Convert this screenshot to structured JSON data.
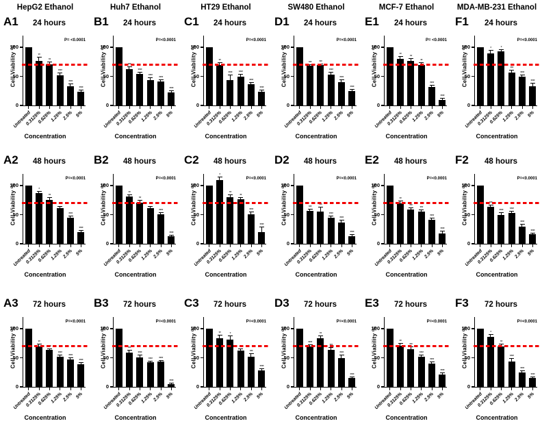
{
  "figure": {
    "column_titles": [
      "HepG2 Ethanol",
      "Huh7 Ethanol",
      "HT29 Ethanol",
      "SW480 Ethanol",
      "MCF-7 Ethanol",
      "MDA-MB-231 Ethanol"
    ],
    "yticks": [
      0,
      50,
      100
    ],
    "ylabel": "Cell Viability %",
    "xlabel": "Concentration",
    "bar_color": "#000000",
    "threshold_color": "#ff0000",
    "threshold_value": 70
  },
  "chart_data": [
    {
      "type": "bar",
      "panel": "A1",
      "group": "HepG2 Ethanol",
      "title": "24 hours",
      "xlabel": "Concentration",
      "ylabel": "Cell Viability %",
      "annotation": "P= <0.0001",
      "ref_line": 70,
      "ylim": [
        0,
        120
      ],
      "categories": [
        "Untreated",
        "0.3125%",
        "0.625%",
        "1.25%",
        "2.5%",
        "5%"
      ],
      "values": [
        100,
        77,
        71,
        52,
        33,
        24
      ],
      "errors": [
        0,
        5,
        3,
        3,
        3,
        2
      ],
      "sig": [
        "",
        "**",
        "**",
        "****",
        "****",
        "****"
      ]
    },
    {
      "type": "bar",
      "panel": "B1",
      "group": "Huh7 Ethanol",
      "title": "24 hours",
      "xlabel": "Concentration",
      "ylabel": "Cell Viability %",
      "annotation": "P=<0.0001",
      "ref_line": 70,
      "ylim": [
        0,
        120
      ],
      "categories": [
        "Untreated",
        "0.3125%",
        "0.625%",
        "1.25%",
        "2.5%",
        "5%"
      ],
      "values": [
        100,
        62,
        54,
        44,
        41,
        22
      ],
      "errors": [
        0,
        4,
        2,
        3,
        2,
        3
      ],
      "sig": [
        "",
        "***",
        "****",
        "****",
        "****",
        "****"
      ]
    },
    {
      "type": "bar",
      "panel": "C1",
      "group": "HT29 Ethanol",
      "title": "24 hours",
      "xlabel": "Concentration",
      "ylabel": "Cell Viability %",
      "annotation": "P=<0.0001",
      "ref_line": 70,
      "ylim": [
        0,
        120
      ],
      "categories": [
        "Untreated",
        "0.3125%",
        "0.625%",
        "1.25%",
        "2.5%",
        "5%"
      ],
      "values": [
        100,
        70,
        44,
        50,
        36,
        24
      ],
      "errors": [
        0,
        3,
        8,
        3,
        3,
        2
      ],
      "sig": [
        "",
        "**",
        "****",
        "****",
        "****",
        "****"
      ]
    },
    {
      "type": "bar",
      "panel": "D1",
      "group": "SW480 Ethanol",
      "title": "24 hours",
      "xlabel": "Concentration",
      "ylabel": "Cell Viability %",
      "annotation": "P=<0.0001",
      "ref_line": 70,
      "ylim": [
        0,
        120
      ],
      "categories": [
        "Untreated",
        "0.3125%",
        "0.625%",
        "1.25%",
        "2.5%",
        "5%"
      ],
      "values": [
        100,
        68,
        69,
        53,
        40,
        25
      ],
      "errors": [
        0,
        2,
        2,
        4,
        3,
        2
      ],
      "sig": [
        "",
        "***",
        "***",
        "****",
        "****",
        "****"
      ]
    },
    {
      "type": "bar",
      "panel": "E1",
      "group": "MCF-7 Ethanol",
      "title": "24 hours",
      "xlabel": "Concentration",
      "ylabel": "Cell Viability %",
      "annotation": "P= <0.0001",
      "ref_line": 70,
      "ylim": [
        0,
        120
      ],
      "categories": [
        "Untreated",
        "0.3125%",
        "0.625%",
        "1.25%",
        "2.5%",
        "5%"
      ],
      "values": [
        100,
        80,
        77,
        70,
        32,
        10
      ],
      "errors": [
        0,
        4,
        3,
        3,
        2,
        2
      ],
      "sig": [
        "",
        "**",
        "**",
        "**",
        "****",
        "****"
      ]
    },
    {
      "type": "bar",
      "panel": "F1",
      "group": "MDA-MB-231 Ethanol",
      "title": "24 hours",
      "xlabel": "Concentration",
      "ylabel": "Cell Viability %",
      "annotation": "P=<0.0001",
      "ref_line": 70,
      "ylim": [
        0,
        120
      ],
      "categories": [
        "Untreated",
        "0.3125%",
        "0.625%",
        "1.25%",
        "2.5%",
        "5%"
      ],
      "values": [
        100,
        90,
        93,
        57,
        49,
        33
      ],
      "errors": [
        0,
        4,
        2,
        3,
        3,
        5
      ],
      "sig": [
        "",
        "*",
        "*",
        "***",
        "****",
        "****"
      ]
    },
    {
      "type": "bar",
      "panel": "A2",
      "group": "HepG2 Ethanol",
      "title": "48 hours",
      "xlabel": "Concentration",
      "ylabel": "Cell Viability %",
      "annotation": "P=<0.0001",
      "ref_line": 70,
      "ylim": [
        0,
        120
      ],
      "categories": [
        "Untreated",
        "0.3125%",
        "0.625%",
        "1.25%",
        "2.5%",
        "5%"
      ],
      "values": [
        100,
        87,
        75,
        61,
        45,
        20
      ],
      "errors": [
        0,
        3,
        4,
        3,
        2,
        2
      ],
      "sig": [
        "",
        "*",
        "**",
        "***",
        "****",
        "****"
      ]
    },
    {
      "type": "bar",
      "panel": "B2",
      "group": "Huh7 Ethanol",
      "title": "48 hours",
      "xlabel": "Concentration",
      "ylabel": "Cell Viability %",
      "annotation": "P=<0.0001",
      "ref_line": 70,
      "ylim": [
        0,
        120
      ],
      "categories": [
        "Untreated",
        "0.3125%",
        "0.625%",
        "1.25%",
        "2.5%",
        "5%"
      ],
      "values": [
        100,
        81,
        71,
        61,
        51,
        13
      ],
      "errors": [
        0,
        3,
        3,
        2,
        2,
        1
      ],
      "sig": [
        "",
        "**",
        "**",
        "***",
        "****",
        "****"
      ]
    },
    {
      "type": "bar",
      "panel": "C2",
      "group": "HT29 Ethanol",
      "title": "48 hours",
      "xlabel": "Concentration",
      "ylabel": "Cell Viability %",
      "annotation": "P=<0.0001",
      "ref_line": 70,
      "ylim": [
        0,
        120
      ],
      "categories": [
        "Untreated",
        "0.3125%",
        "0.625%",
        "1.25%",
        "2.5%",
        "5%"
      ],
      "values": [
        100,
        110,
        80,
        76,
        51,
        20
      ],
      "errors": [
        0,
        4,
        4,
        3,
        3,
        8
      ],
      "sig": [
        "",
        "*",
        "**",
        "**",
        "****",
        "****"
      ]
    },
    {
      "type": "bar",
      "panel": "D2",
      "group": "SW480 Ethanol",
      "title": "48 hours",
      "xlabel": "Concentration",
      "ylabel": "Cell Viability %",
      "annotation": "P=<0.0001",
      "ref_line": 70,
      "ylim": [
        0,
        120
      ],
      "categories": [
        "Untreated",
        "0.3125%",
        "0.625%",
        "1.25%",
        "2.5%",
        "5%"
      ],
      "values": [
        100,
        56,
        55,
        45,
        36,
        13
      ],
      "errors": [
        0,
        3,
        7,
        2,
        4,
        2
      ],
      "sig": [
        "",
        "***",
        "***",
        "****",
        "****",
        "****"
      ]
    },
    {
      "type": "bar",
      "panel": "E2",
      "group": "MCF-7 Ethanol",
      "title": "48 hours",
      "xlabel": "Concentration",
      "ylabel": "Cell Viability %",
      "annotation": "P=<0.0001",
      "ref_line": 70,
      "ylim": [
        0,
        120
      ],
      "categories": [
        "Untreated",
        "0.3125%",
        "0.625%",
        "1.25%",
        "2.5%",
        "5%"
      ],
      "values": [
        100,
        70,
        59,
        55,
        41,
        18
      ],
      "errors": [
        0,
        3,
        2,
        3,
        3,
        3
      ],
      "sig": [
        "",
        "**",
        "***",
        "***",
        "****",
        "****"
      ]
    },
    {
      "type": "bar",
      "panel": "F2",
      "group": "MDA-MB-231 Ethanol",
      "title": "48 hours",
      "xlabel": "Concentration",
      "ylabel": "Cell Viability %",
      "annotation": "P=<0.0001",
      "ref_line": 70,
      "ylim": [
        0,
        120
      ],
      "categories": [
        "Untreated",
        "0.3125%",
        "0.625%",
        "1.25%",
        "2.5%",
        "5%"
      ],
      "values": [
        100,
        64,
        50,
        53,
        30,
        16
      ],
      "errors": [
        0,
        2,
        3,
        2,
        3,
        2
      ],
      "sig": [
        "",
        "***",
        "****",
        "****",
        "****",
        "****"
      ]
    },
    {
      "type": "bar",
      "panel": "A3",
      "group": "HepG2 Ethanol",
      "title": "72 hours",
      "xlabel": "Concentration",
      "ylabel": "Cell Viability %",
      "annotation": "P=<0.0001",
      "ref_line": 70,
      "ylim": [
        0,
        120
      ],
      "categories": [
        "Untreated",
        "0.3125%",
        "0.625%",
        "1.25%",
        "2.5%",
        "5%"
      ],
      "values": [
        100,
        70,
        63,
        52,
        47,
        39
      ],
      "errors": [
        0,
        3,
        2,
        2,
        2,
        2
      ],
      "sig": [
        "",
        "**",
        "***",
        "****",
        "****",
        "****"
      ]
    },
    {
      "type": "bar",
      "panel": "B3",
      "group": "Huh7 Ethanol",
      "title": "72 hours",
      "xlabel": "Concentration",
      "ylabel": "Cell Viability %",
      "annotation": "P=<0.0001",
      "ref_line": 70,
      "ylim": [
        0,
        120
      ],
      "categories": [
        "Untreated",
        "0.3125%",
        "0.625%",
        "1.25%",
        "2.5%",
        "5%"
      ],
      "values": [
        100,
        59,
        51,
        42,
        43,
        5
      ],
      "errors": [
        0,
        3,
        3,
        2,
        2,
        1
      ],
      "sig": [
        "",
        "***",
        "****",
        "****",
        "****",
        "****"
      ]
    },
    {
      "type": "bar",
      "panel": "C3",
      "group": "HT29 Ethanol",
      "title": "72 hours",
      "xlabel": "Concentration",
      "ylabel": "Cell Viability %",
      "annotation": "P=<0.0001",
      "ref_line": 70,
      "ylim": [
        0,
        120
      ],
      "categories": [
        "Untreated",
        "0.3125%",
        "0.625%",
        "1.25%",
        "2.5%",
        "5%"
      ],
      "values": [
        100,
        84,
        81,
        62,
        52,
        28
      ],
      "errors": [
        0,
        4,
        6,
        3,
        5,
        3
      ],
      "sig": [
        "",
        "**",
        "*",
        "**",
        "***",
        "****"
      ]
    },
    {
      "type": "bar",
      "panel": "D3",
      "group": "SW480 Ethanol",
      "title": "72 hours",
      "xlabel": "Concentration",
      "ylabel": "Cell Viability %",
      "annotation": "P=<0.0001",
      "ref_line": 70,
      "ylim": [
        0,
        120
      ],
      "categories": [
        "Untreated",
        "0.3125%",
        "0.625%",
        "1.25%",
        "2.5%",
        "5%"
      ],
      "values": [
        100,
        70,
        83,
        64,
        50,
        15
      ],
      "errors": [
        0,
        2,
        4,
        3,
        4,
        2
      ],
      "sig": [
        "",
        "****",
        "**",
        "***",
        "****",
        "****"
      ]
    },
    {
      "type": "bar",
      "panel": "E3",
      "group": "MCF-7 Ethanol",
      "title": "72 hours",
      "xlabel": "Concentration",
      "ylabel": "Cell Viability %",
      "annotation": "P=<0.0001",
      "ref_line": 70,
      "ylim": [
        0,
        120
      ],
      "categories": [
        "Untreated",
        "0.3125%",
        "0.625%",
        "1.25%",
        "2.5%",
        "5%"
      ],
      "values": [
        100,
        71,
        65,
        52,
        40,
        21
      ],
      "errors": [
        0,
        3,
        3,
        2,
        2,
        2
      ],
      "sig": [
        "",
        "**",
        "***",
        "****",
        "****",
        "****"
      ]
    },
    {
      "type": "bar",
      "panel": "F3",
      "group": "MDA-MB-231 Ethanol",
      "title": "72 hours",
      "xlabel": "Concentration",
      "ylabel": "Cell Viability %",
      "annotation": "P=<0.0001",
      "ref_line": 70,
      "ylim": [
        0,
        120
      ],
      "categories": [
        "Untreated",
        "0.3125%",
        "0.625%",
        "1.25%",
        "2.5%",
        "5%"
      ],
      "values": [
        100,
        86,
        70,
        44,
        25,
        15
      ],
      "errors": [
        0,
        4,
        3,
        4,
        2,
        2
      ],
      "sig": [
        "",
        "*",
        "**",
        "****",
        "****",
        "****"
      ]
    }
  ]
}
